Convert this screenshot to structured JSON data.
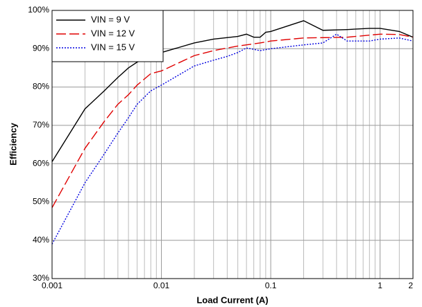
{
  "chart_data": {
    "type": "line",
    "xlabel": "Load Current (A)",
    "ylabel": "Efficiency",
    "xscale": "log",
    "xlim": [
      0.001,
      2
    ],
    "xticks": [
      0.001,
      0.01,
      0.1,
      1,
      2
    ],
    "xminorticks": [
      0.002,
      0.003,
      0.004,
      0.005,
      0.006,
      0.007,
      0.008,
      0.009,
      0.02,
      0.03,
      0.04,
      0.05,
      0.06,
      0.07,
      0.08,
      0.09,
      0.2,
      0.3,
      0.4,
      0.5,
      0.6,
      0.7,
      0.8,
      0.9,
      1.5
    ],
    "ylim": [
      30,
      100
    ],
    "yticks": [
      {
        "value": 30,
        "label": "30%"
      },
      {
        "value": 40,
        "label": "40%"
      },
      {
        "value": 50,
        "label": "50%"
      },
      {
        "value": 60,
        "label": "60%"
      },
      {
        "value": 70,
        "label": "70%"
      },
      {
        "value": 80,
        "label": "80%"
      },
      {
        "value": 90,
        "label": "90%"
      },
      {
        "value": 100,
        "label": "100%"
      }
    ],
    "grid": true,
    "legend": "upper left",
    "series": [
      {
        "name": "VIN = 9 V",
        "color": "#000000",
        "dash": "solid",
        "x": [
          0.001,
          0.002,
          0.003,
          0.004,
          0.005,
          0.006,
          0.008,
          0.01,
          0.02,
          0.03,
          0.05,
          0.06,
          0.07,
          0.08,
          0.09,
          0.1,
          0.2,
          0.3,
          0.5,
          0.8,
          1,
          1.5,
          2
        ],
        "values": [
          60.5,
          74.3,
          79,
          82.5,
          85,
          86.5,
          88,
          89,
          91.5,
          92.5,
          93.2,
          93.8,
          93,
          93,
          94.3,
          94.5,
          97.3,
          94.8,
          95,
          95.3,
          95.3,
          94.5,
          93
        ]
      },
      {
        "name": "VIN = 12 V",
        "color": "#e00000",
        "dash": "dashed",
        "x": [
          0.001,
          0.002,
          0.003,
          0.004,
          0.005,
          0.006,
          0.008,
          0.01,
          0.02,
          0.03,
          0.05,
          0.08,
          0.1,
          0.2,
          0.5,
          1,
          1.5,
          2
        ],
        "values": [
          48.5,
          64,
          71,
          75.5,
          78,
          80.5,
          83.5,
          84.2,
          88.2,
          89.5,
          90.7,
          91.5,
          92,
          92.8,
          93,
          93.8,
          93.7,
          93
        ]
      },
      {
        "name": "VIN = 15 V",
        "color": "#0000e0",
        "dash": "dotted",
        "x": [
          0.001,
          0.002,
          0.003,
          0.004,
          0.005,
          0.006,
          0.008,
          0.01,
          0.02,
          0.03,
          0.04,
          0.05,
          0.06,
          0.08,
          0.1,
          0.2,
          0.3,
          0.4,
          0.5,
          0.8,
          1,
          1.5,
          2
        ],
        "values": [
          39,
          55,
          62.5,
          68,
          72,
          75.5,
          79,
          80.5,
          85.5,
          87,
          88,
          89,
          90.2,
          89.5,
          90,
          91,
          91.5,
          93.8,
          92,
          92,
          92.5,
          92.8,
          92
        ]
      }
    ]
  }
}
